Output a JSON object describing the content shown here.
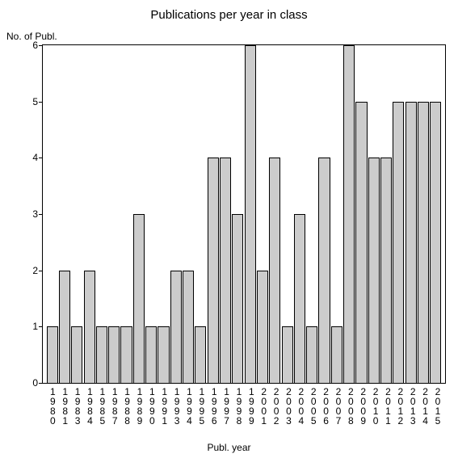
{
  "chart": {
    "type": "bar",
    "title": "Publications per year in class",
    "title_fontsize": 15,
    "ylabel": "No. of Publ.",
    "xlabel": "Publ. year",
    "label_fontsize": 12,
    "tick_fontsize": 12,
    "background_color": "#ffffff",
    "axis_color": "#000000",
    "bar_color": "#cccccc",
    "bar_border_color": "#000000",
    "bar_width": 0.92,
    "ylim": [
      0,
      6
    ],
    "yticks": [
      0,
      1,
      2,
      3,
      4,
      5,
      6
    ],
    "categories": [
      "1980",
      "1981",
      "1983",
      "1984",
      "1985",
      "1987",
      "1988",
      "1989",
      "1990",
      "1991",
      "1993",
      "1994",
      "1995",
      "1996",
      "1997",
      "1998",
      "1999",
      "2001",
      "2002",
      "2003",
      "2004",
      "2005",
      "2006",
      "2007",
      "2008",
      "2009",
      "2010",
      "2011",
      "2012",
      "2013",
      "2014",
      "2015"
    ],
    "values": [
      1,
      2,
      1,
      2,
      1,
      1,
      1,
      3,
      1,
      1,
      2,
      2,
      1,
      4,
      4,
      3,
      6,
      2,
      4,
      1,
      3,
      1,
      4,
      1,
      6,
      5,
      4,
      4,
      5,
      5,
      5,
      5
    ]
  }
}
